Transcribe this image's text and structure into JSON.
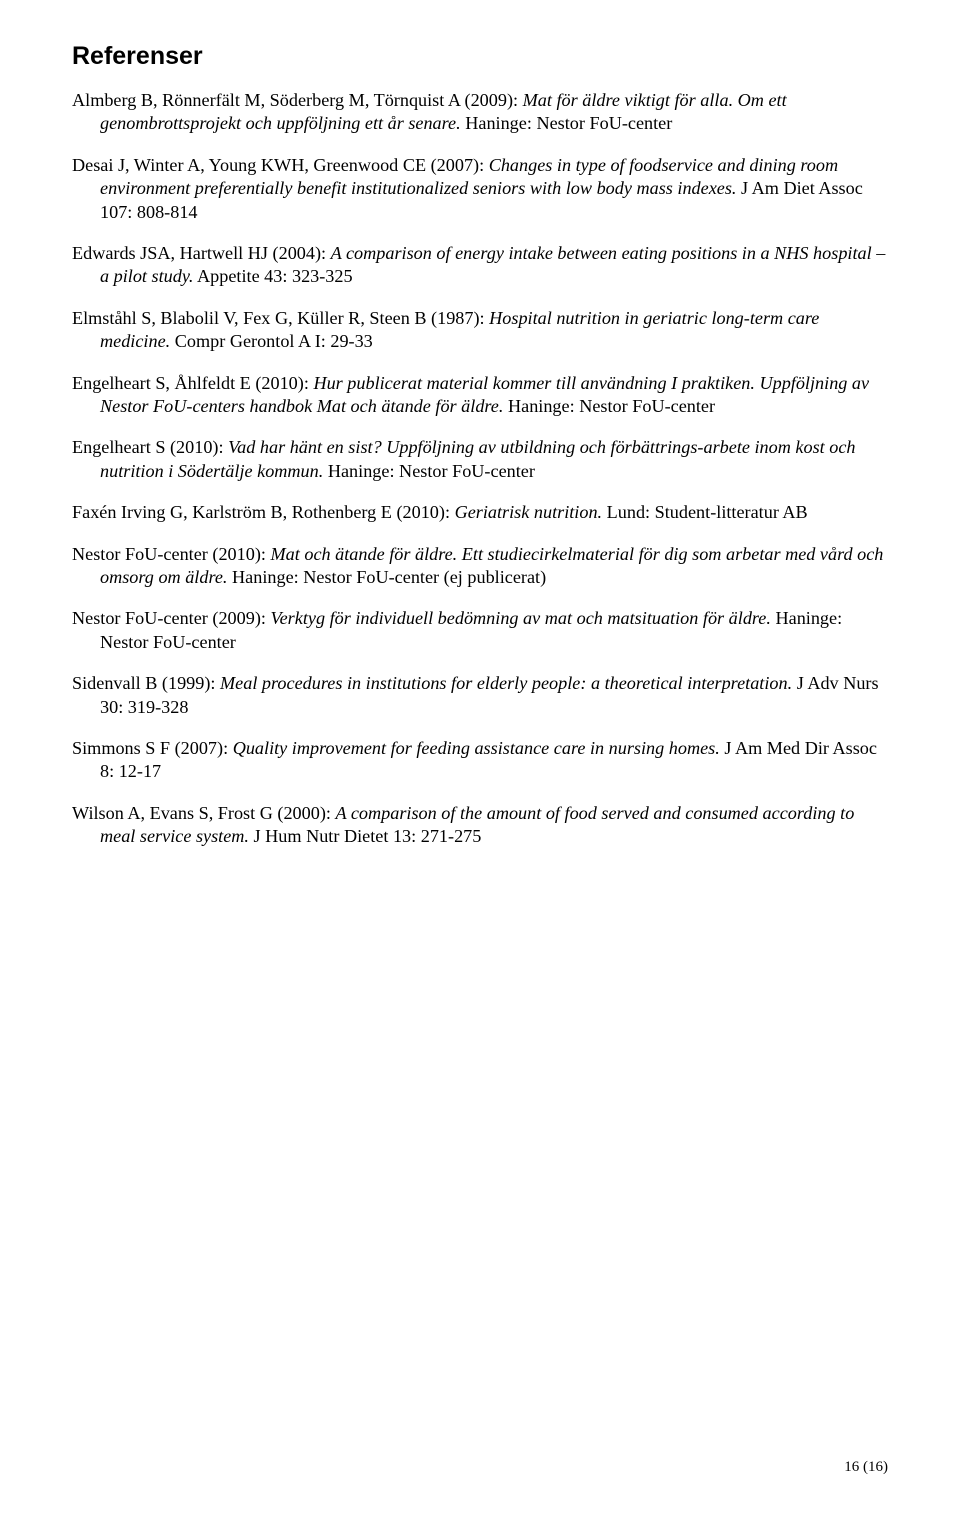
{
  "heading": "Referenser",
  "references": [
    {
      "pre": "Almberg B, Rönnerfält M, Söderberg M, Törnquist A (2009): ",
      "italic": "Mat för äldre viktigt för alla. Om ett genombrottsprojekt och uppföljning ett år senare.",
      "post": " Haninge: Nestor FoU-center"
    },
    {
      "pre": "Desai J, Winter A, Young KWH, Greenwood CE (2007): ",
      "italic": "Changes in type of foodservice and dining room environment preferentially benefit institutionalized seniors with low body mass indexes.",
      "post": " J Am Diet Assoc 107: 808-814"
    },
    {
      "pre": "Edwards JSA, Hartwell HJ (2004): ",
      "italic": "A comparison of energy intake between eating positions in a NHS hospital – a pilot study.",
      "post": " Appetite 43: 323-325"
    },
    {
      "pre": "Elmståhl S, Blabolil V, Fex G, Küller R, Steen B (1987): ",
      "italic": "Hospital nutrition in geriatric long-term care medicine.",
      "post": " Compr Gerontol A I: 29-33"
    },
    {
      "pre": "Engelheart S, Åhlfeldt E (2010): ",
      "italic": "Hur publicerat material kommer till användning I praktiken. Uppföljning av Nestor FoU-centers handbok Mat och ätande för äldre.",
      "post": " Haninge: Nestor FoU-center"
    },
    {
      "pre": "Engelheart S (2010): ",
      "italic": "Vad har hänt en sist? Uppföljning av utbildning och förbättrings-arbete inom kost och nutrition i Södertälje kommun.",
      "post": " Haninge: Nestor FoU-center"
    },
    {
      "pre": "Faxén Irving G, Karlström B, Rothenberg E (2010): ",
      "italic": "Geriatrisk nutrition.",
      "post": " Lund: Student-litteratur AB"
    },
    {
      "pre": "Nestor FoU-center (2010): ",
      "italic": "Mat och ätande för äldre. Ett studiecirkelmaterial för dig som arbetar med vård och omsorg om äldre.",
      "post": " Haninge: Nestor FoU-center (ej publicerat)"
    },
    {
      "pre": "Nestor FoU-center (2009): ",
      "italic": "Verktyg för individuell bedömning av mat och matsituation för äldre.",
      "post": " Haninge: Nestor FoU-center"
    },
    {
      "pre": "Sidenvall B (1999): ",
      "italic": "Meal procedures in institutions for elderly people: a theoretical interpretation.",
      "post": " J Adv Nurs 30: 319-328"
    },
    {
      "pre": "Simmons S F (2007): ",
      "italic": "Quality improvement for feeding assistance care in nursing homes.",
      "post": " J Am Med Dir Assoc 8: 12-17"
    },
    {
      "pre": "Wilson A, Evans S, Frost G (2000): ",
      "italic": "A comparison of the amount of food served and consumed according to meal service system.",
      "post": " J Hum Nutr Dietet 13: 271-275"
    }
  ],
  "pageNumber": "16 (16)"
}
